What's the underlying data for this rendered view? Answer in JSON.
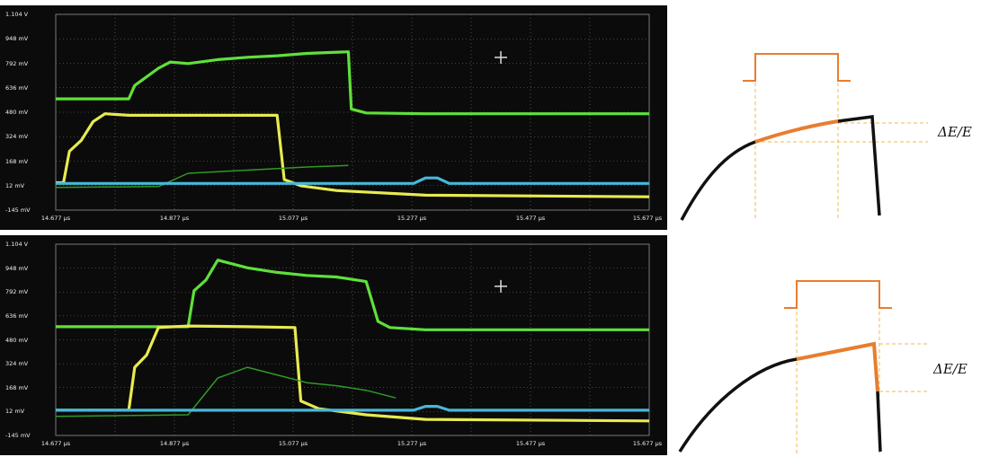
{
  "colors": {
    "screen_bg": "#0b0b0b",
    "grid": "#7a7a7a",
    "green_trace": "#5fe03a",
    "green_dim": "#2f9a25",
    "yellow_trace": "#e8ea50",
    "cyan_trace": "#46b8d8",
    "pulse": "#e87d2f",
    "curve": "#111111",
    "guide": "#f2b94a"
  },
  "chart_data": [
    {
      "type": "line",
      "title": "",
      "ylim": [
        -145,
        1104
      ],
      "y_tick_labels": [
        "1.104 V",
        "948 mV",
        "792 mV",
        "636 mV",
        "480 mV",
        "324 mV",
        "168 mV",
        "12 mV",
        "-145 mV"
      ],
      "x_tick_labels": [
        "14.677 µs",
        "14.877 µs",
        "15.077 µs",
        "15.277 µs",
        "15.477 µs",
        "15.677 µs"
      ],
      "xlim": [
        14.677,
        15.677
      ],
      "series": [
        {
          "color": "#5fe03a",
          "x": [
            14.677,
            14.8,
            14.81,
            14.85,
            14.87,
            14.9,
            14.95,
            15.0,
            15.05,
            15.1,
            15.17,
            15.175,
            15.2,
            15.3,
            15.677
          ],
          "y": [
            565,
            565,
            650,
            760,
            800,
            790,
            815,
            830,
            840,
            855,
            865,
            500,
            475,
            470,
            470
          ]
        },
        {
          "color": "#e8ea50",
          "x": [
            14.677,
            14.69,
            14.7,
            14.72,
            14.74,
            14.76,
            14.8,
            14.9,
            15.0,
            15.05,
            15.062,
            15.09,
            15.15,
            15.3,
            15.677
          ],
          "y": [
            30,
            30,
            230,
            300,
            420,
            470,
            460,
            460,
            460,
            460,
            50,
            10,
            -20,
            -50,
            -60
          ]
        },
        {
          "color": "#2f9a25",
          "x": [
            14.677,
            14.85,
            14.9,
            14.95,
            15.0,
            15.05,
            15.1,
            15.17
          ],
          "y": [
            0,
            5,
            90,
            100,
            110,
            120,
            130,
            140
          ]
        },
        {
          "color": "#46b8d8",
          "x": [
            14.677,
            15.0,
            15.2,
            15.28,
            15.3,
            15.32,
            15.34,
            15.677
          ],
          "y": [
            25,
            25,
            25,
            25,
            60,
            60,
            25,
            25
          ]
        }
      ]
    },
    {
      "type": "line",
      "title": "",
      "ylim": [
        -145,
        1104
      ],
      "y_tick_labels": [
        "1.104 V",
        "948 mV",
        "792 mV",
        "636 mV",
        "480 mV",
        "324 mV",
        "168 mV",
        "12 mV",
        "-145 mV"
      ],
      "x_tick_labels": [
        "14.677 µs",
        "14.877 µs",
        "15.077 µs",
        "15.277 µs",
        "15.477 µs",
        "15.677 µs"
      ],
      "xlim": [
        14.677,
        15.677
      ],
      "series": [
        {
          "color": "#5fe03a",
          "x": [
            14.677,
            14.9,
            14.91,
            14.93,
            14.95,
            15.0,
            15.05,
            15.1,
            15.15,
            15.2,
            15.22,
            15.24,
            15.3,
            15.677
          ],
          "y": [
            565,
            565,
            800,
            870,
            1000,
            950,
            920,
            900,
            890,
            860,
            600,
            560,
            545,
            545
          ]
        },
        {
          "color": "#e8ea50",
          "x": [
            14.677,
            14.8,
            14.81,
            14.83,
            14.85,
            14.9,
            15.0,
            15.08,
            15.09,
            15.12,
            15.2,
            15.3,
            15.677
          ],
          "y": [
            20,
            20,
            300,
            380,
            560,
            570,
            565,
            560,
            80,
            30,
            -10,
            -40,
            -50
          ]
        },
        {
          "color": "#2f9a25",
          "x": [
            14.677,
            14.9,
            14.95,
            15.0,
            15.05,
            15.1,
            15.15,
            15.2,
            15.25
          ],
          "y": [
            -20,
            -10,
            230,
            300,
            250,
            200,
            180,
            150,
            100
          ]
        },
        {
          "color": "#46b8d8",
          "x": [
            14.677,
            15.0,
            15.2,
            15.28,
            15.3,
            15.32,
            15.34,
            15.677
          ],
          "y": [
            20,
            20,
            20,
            20,
            45,
            45,
            20,
            20
          ]
        }
      ]
    }
  ],
  "diagrams": [
    {
      "label": "ΔE/E"
    },
    {
      "label": "ΔE/E"
    }
  ]
}
